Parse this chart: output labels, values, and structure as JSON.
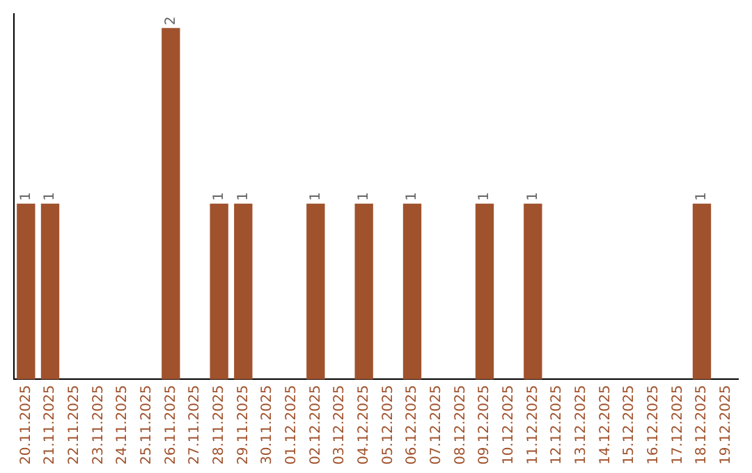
{
  "chart_data": {
    "type": "bar",
    "categories": [
      "20.11.2025",
      "21.11.2025",
      "22.11.2025",
      "23.11.2025",
      "24.11.2025",
      "25.11.2025",
      "26.11.2025",
      "27.11.2025",
      "28.11.2025",
      "29.11.2025",
      "30.11.2025",
      "01.12.2025",
      "02.12.2025",
      "03.12.2025",
      "04.12.2025",
      "05.12.2025",
      "06.12.2025",
      "07.12.2025",
      "08.12.2025",
      "09.12.2025",
      "10.12.2025",
      "11.12.2025",
      "12.12.2025",
      "13.12.2025",
      "14.12.2025",
      "15.12.2025",
      "16.12.2025",
      "17.12.2025",
      "18.12.2025",
      "19.12.2025"
    ],
    "values": [
      1,
      1,
      0,
      0,
      0,
      0,
      2,
      0,
      1,
      1,
      0,
      0,
      1,
      0,
      1,
      0,
      1,
      0,
      0,
      1,
      0,
      1,
      0,
      0,
      0,
      0,
      0,
      0,
      1,
      0
    ],
    "value_labels": [
      "1",
      "1",
      null,
      null,
      null,
      null,
      "2",
      null,
      "1",
      "1",
      null,
      null,
      "1",
      null,
      "1",
      null,
      "1",
      null,
      null,
      "1",
      null,
      "1",
      null,
      null,
      null,
      null,
      null,
      null,
      "1",
      null
    ],
    "color": "#a0522d",
    "ylim": [
      0,
      2.08
    ],
    "tick_labels": "x",
    "grid": false,
    "legend": false
  }
}
